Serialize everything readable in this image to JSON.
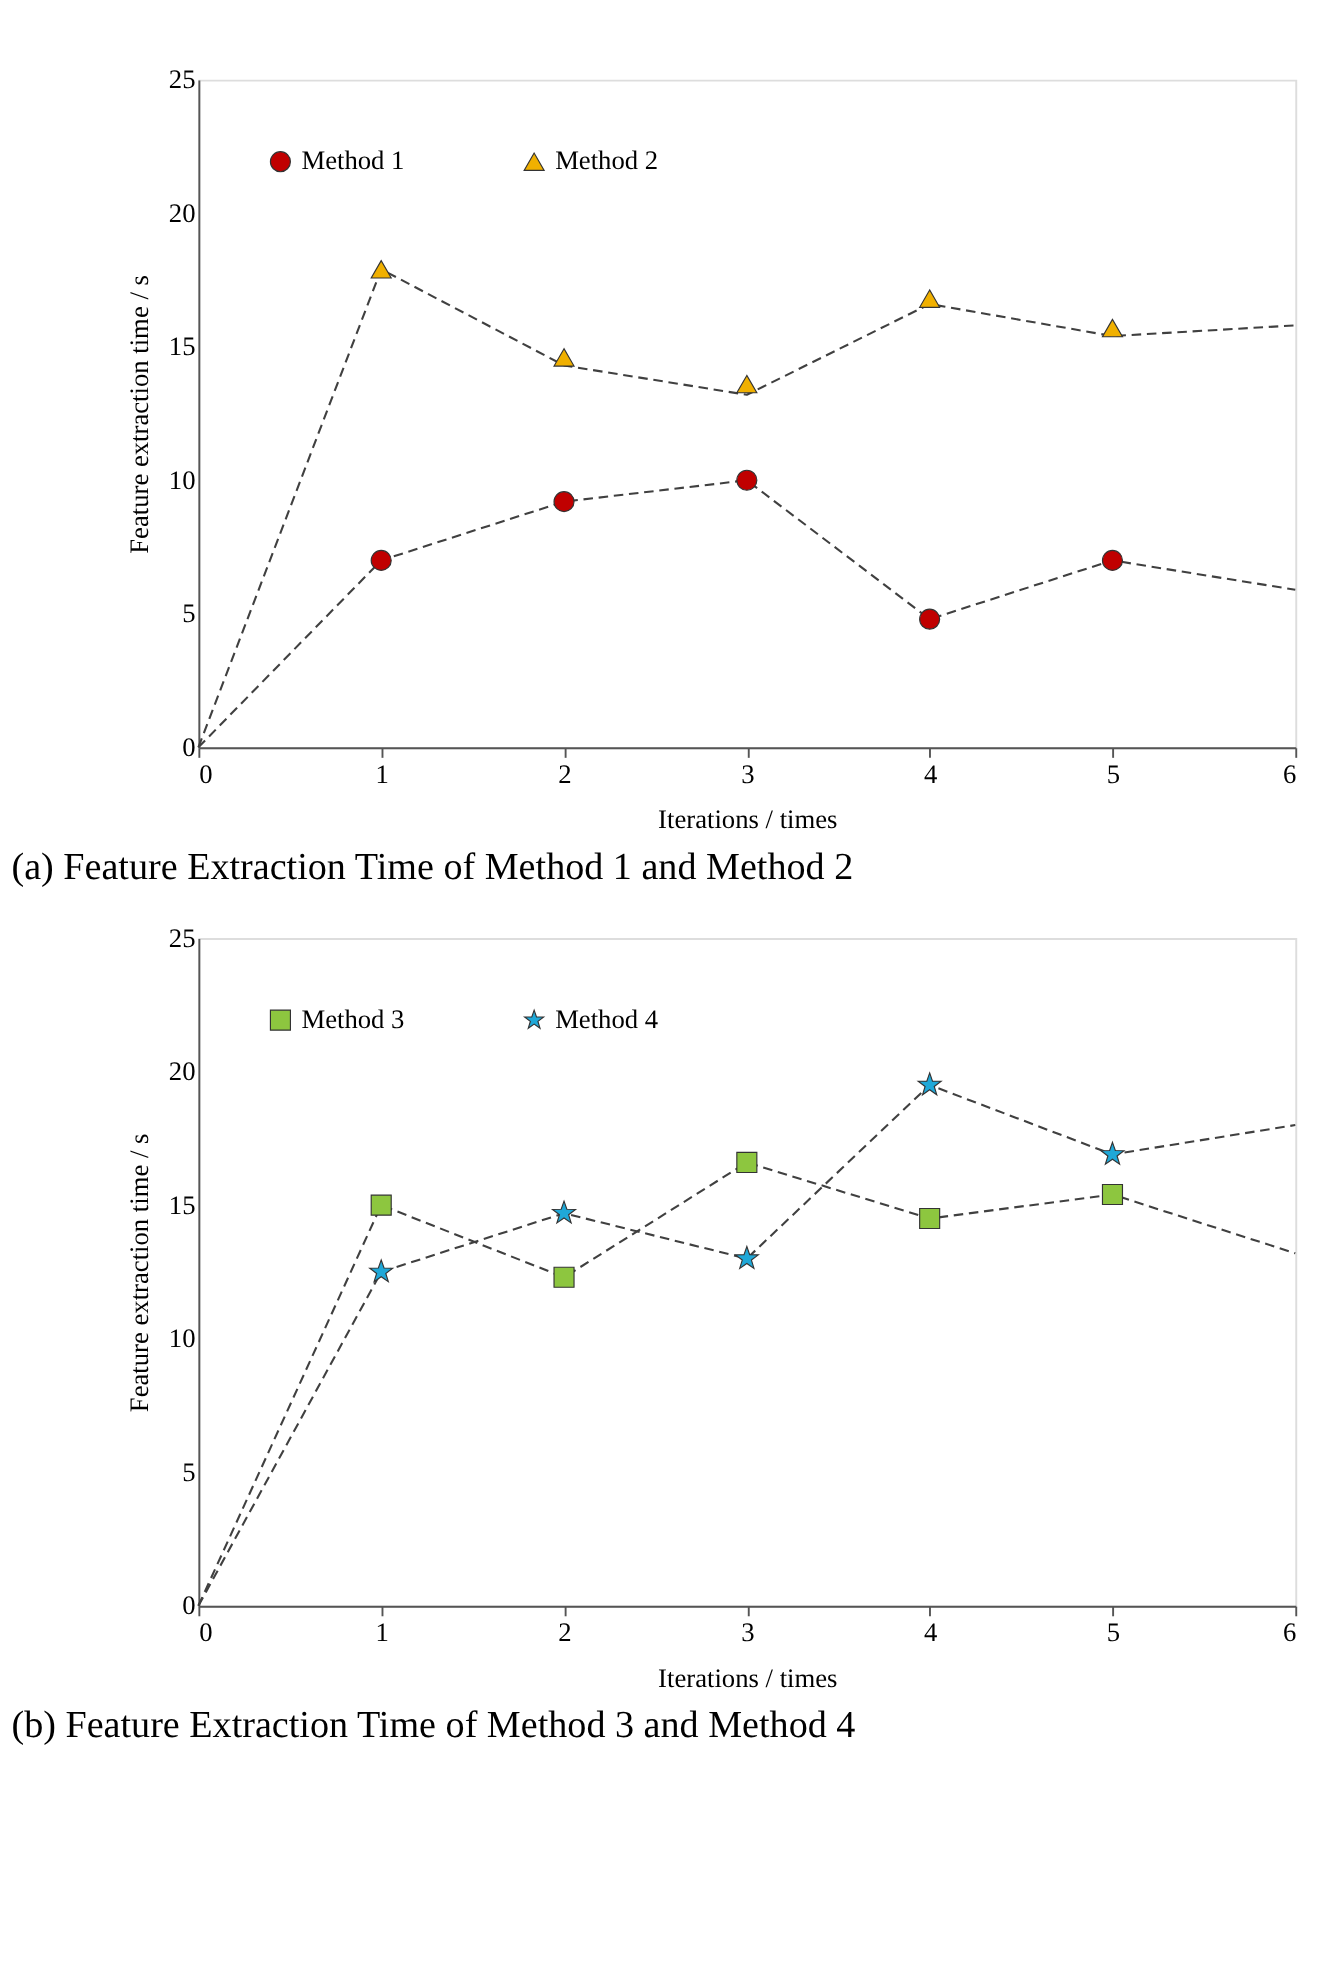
{
  "chart_data": [
    {
      "type": "line",
      "title": "(a) Feature Extraction Time of Method 1 and Method 2",
      "xlabel": "Iterations / times",
      "ylabel": "Feature extraction time / s",
      "xlim": [
        0,
        6
      ],
      "xticks": [
        0,
        1,
        2,
        3,
        4,
        5,
        6
      ],
      "ylim": [
        0,
        25
      ],
      "yticks": [
        0,
        5,
        10,
        15,
        20,
        25
      ],
      "grid": false,
      "legend": "top left",
      "series": [
        {
          "color": "#404040",
          "line_style": "dashed",
          "marker": "none",
          "x": [
            0,
            1,
            2,
            3,
            4,
            5,
            6
          ],
          "values": [
            0,
            7.0,
            9.2,
            10.0,
            4.8,
            7.0,
            5.9
          ]
        },
        {
          "color": "#404040",
          "line_style": "dashed",
          "marker": "none",
          "x": [
            0,
            1,
            2,
            3,
            4,
            5,
            6
          ],
          "values": [
            0,
            17.9,
            14.3,
            13.2,
            16.6,
            15.4,
            15.8
          ]
        },
        {
          "type": "scatter",
          "name": "Method 1",
          "color": "#c00000",
          "marker": "circle",
          "x": [
            1,
            2,
            3,
            4,
            5
          ],
          "values": [
            7.0,
            9.2,
            10.0,
            4.8,
            7.0
          ]
        },
        {
          "type": "scatter",
          "name": "Method 2",
          "color": "#f0b000",
          "marker": "triangle",
          "x": [
            1,
            2,
            3,
            4,
            5
          ],
          "values": [
            17.9,
            14.6,
            13.6,
            16.8,
            15.7
          ]
        }
      ]
    },
    {
      "type": "line",
      "title": "(b) Feature Extraction Time of Method 3 and Method 4",
      "xlabel": "Iterations / times",
      "ylabel": "Feature extraction time / s",
      "xlim": [
        0,
        6
      ],
      "xticks": [
        0,
        1,
        2,
        3,
        4,
        5,
        6
      ],
      "ylim": [
        0,
        25
      ],
      "yticks": [
        0,
        5,
        10,
        15,
        20,
        25
      ],
      "grid": false,
      "legend": "top left",
      "series": [
        {
          "color": "#404040",
          "line_style": "dashed",
          "marker": "none",
          "x": [
            0,
            1,
            2,
            3,
            4,
            5,
            6
          ],
          "values": [
            0,
            15.0,
            12.3,
            16.6,
            14.5,
            15.4,
            13.2
          ]
        },
        {
          "color": "#404040",
          "line_style": "dashed",
          "marker": "none",
          "x": [
            0,
            1,
            2,
            3,
            4,
            5,
            6
          ],
          "values": [
            0,
            12.5,
            14.7,
            13.0,
            19.5,
            16.9,
            18.0
          ]
        },
        {
          "type": "scatter",
          "name": "Method 3",
          "color": "#8dc63f",
          "marker": "square",
          "x": [
            1,
            2,
            3,
            4,
            5
          ],
          "values": [
            15.0,
            12.3,
            16.6,
            14.5,
            15.4
          ]
        },
        {
          "type": "scatter",
          "name": "Method 4",
          "color": "#1fa8d8",
          "marker": "star",
          "x": [
            1,
            2,
            3,
            4,
            5
          ],
          "values": [
            12.5,
            14.7,
            13.0,
            19.5,
            16.9
          ]
        }
      ]
    }
  ]
}
